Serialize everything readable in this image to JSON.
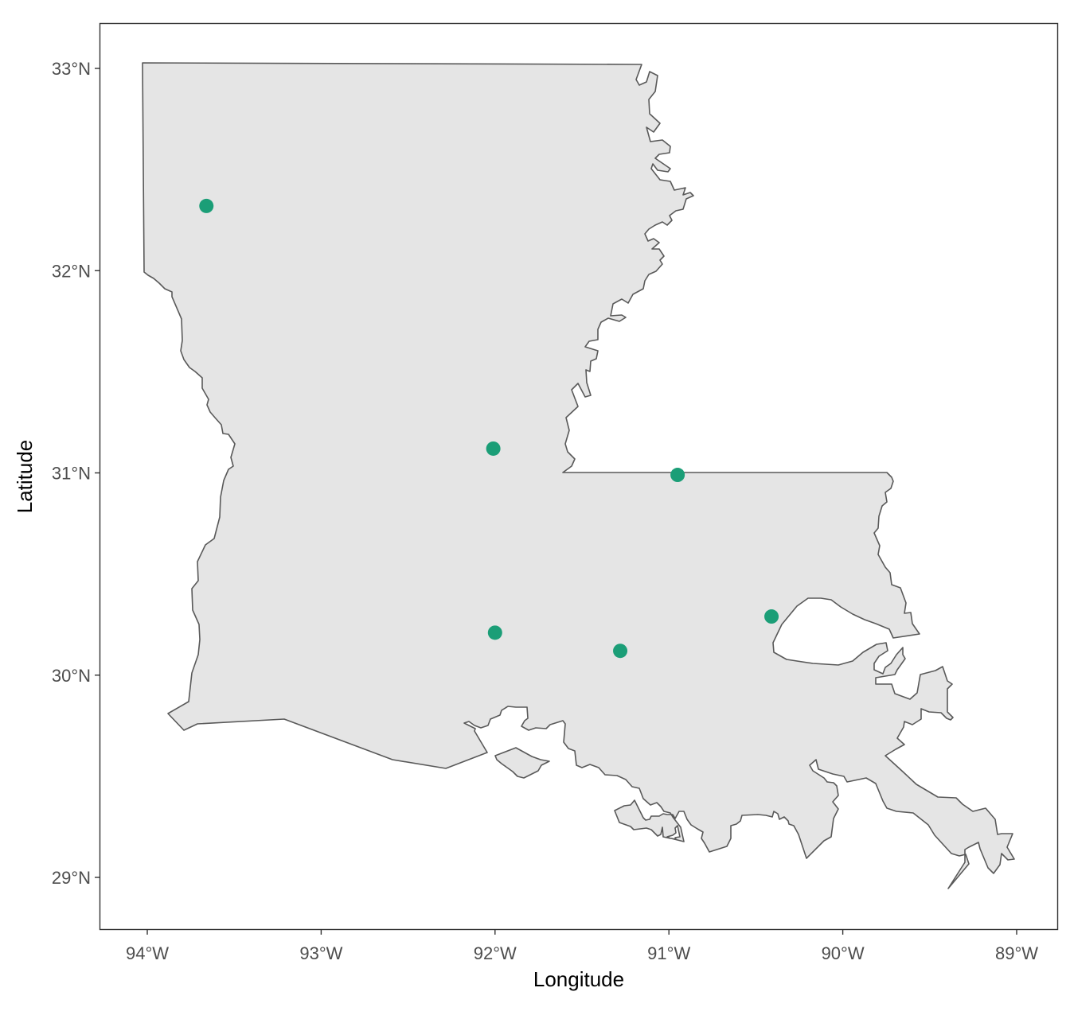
{
  "chart_data": {
    "type": "scatter",
    "xlabel": "Longitude",
    "ylabel": "Latitude",
    "x_ticks": [
      {
        "value": -94,
        "label": "94°W"
      },
      {
        "value": -93,
        "label": "93°W"
      },
      {
        "value": -92,
        "label": "92°W"
      },
      {
        "value": -91,
        "label": "91°W"
      },
      {
        "value": -90,
        "label": "90°W"
      },
      {
        "value": -89,
        "label": "89°W"
      }
    ],
    "y_ticks": [
      {
        "value": 29,
        "label": "29°N"
      },
      {
        "value": 30,
        "label": "30°N"
      },
      {
        "value": 31,
        "label": "31°N"
      },
      {
        "value": 32,
        "label": "32°N"
      },
      {
        "value": 33,
        "label": "33°N"
      }
    ],
    "xlim": [
      -94.26,
      -88.78
    ],
    "ylim": [
      28.73,
      33.22
    ],
    "grid": false,
    "legend": "none",
    "points": [
      {
        "lon": -93.66,
        "lat": 32.32
      },
      {
        "lon": -92.01,
        "lat": 31.12
      },
      {
        "lon": -90.95,
        "lat": 30.99
      },
      {
        "lon": -90.41,
        "lat": 30.29
      },
      {
        "lon": -92.0,
        "lat": 30.21
      },
      {
        "lon": -91.28,
        "lat": 30.12
      }
    ]
  },
  "colors": {
    "point": "#1b9e77",
    "land_fill": "#e5e5e5",
    "land_stroke": "#595959",
    "panel_border": "#333333",
    "background": "#ffffff"
  }
}
